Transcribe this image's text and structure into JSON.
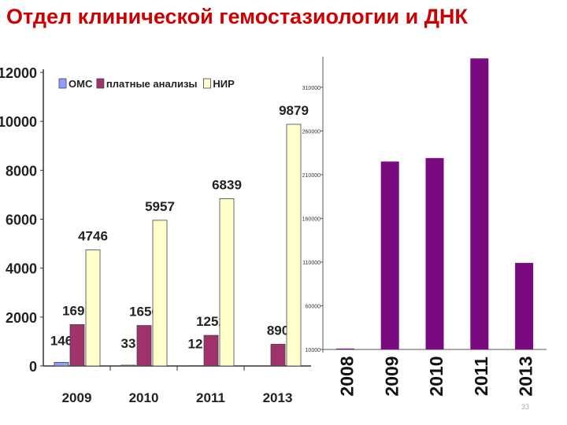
{
  "slide": {
    "title": "Отдел клинической гемостазиологии и ДНК",
    "page_number": "33"
  },
  "colors": {
    "title": "#cc0000",
    "oms": "#8f9fff",
    "paid": "#a0336b",
    "nir": "#ffffcc",
    "right_bars": "#7a0a80"
  },
  "chart_data": [
    {
      "type": "bar",
      "categories": [
        "2009",
        "2010",
        "2011",
        "2013"
      ],
      "series": [
        {
          "name": "ОМС",
          "values": [
            146,
            33,
            12,
            0
          ]
        },
        {
          "name": "платные анализы",
          "values": [
            1691,
            1656,
            1252,
            890
          ]
        },
        {
          "name": "НИР",
          "values": [
            4746,
            5957,
            6839,
            9879
          ]
        }
      ],
      "data_labels": [
        [
          "146",
          "1691",
          "4746"
        ],
        [
          "33",
          "1656",
          "5957"
        ],
        [
          "12",
          "1252",
          "6839"
        ],
        [
          "",
          "890",
          "9879"
        ]
      ],
      "yticks": [
        "0",
        "2000",
        "4000",
        "6000",
        "8000",
        "10000",
        "12000"
      ],
      "ylim": [
        0,
        12000
      ],
      "legend": "top-left",
      "grid": false
    },
    {
      "type": "bar",
      "categories": [
        "2008",
        "2009",
        "2010",
        "2011",
        "2013"
      ],
      "values": [
        11000,
        225000,
        229000,
        343000,
        109000
      ],
      "yticks": [
        "10000",
        "60000",
        "110000",
        "160000",
        "210000",
        "260000",
        "310000"
      ],
      "ylim": [
        10000,
        345000
      ],
      "legend": "none",
      "grid": false
    }
  ]
}
